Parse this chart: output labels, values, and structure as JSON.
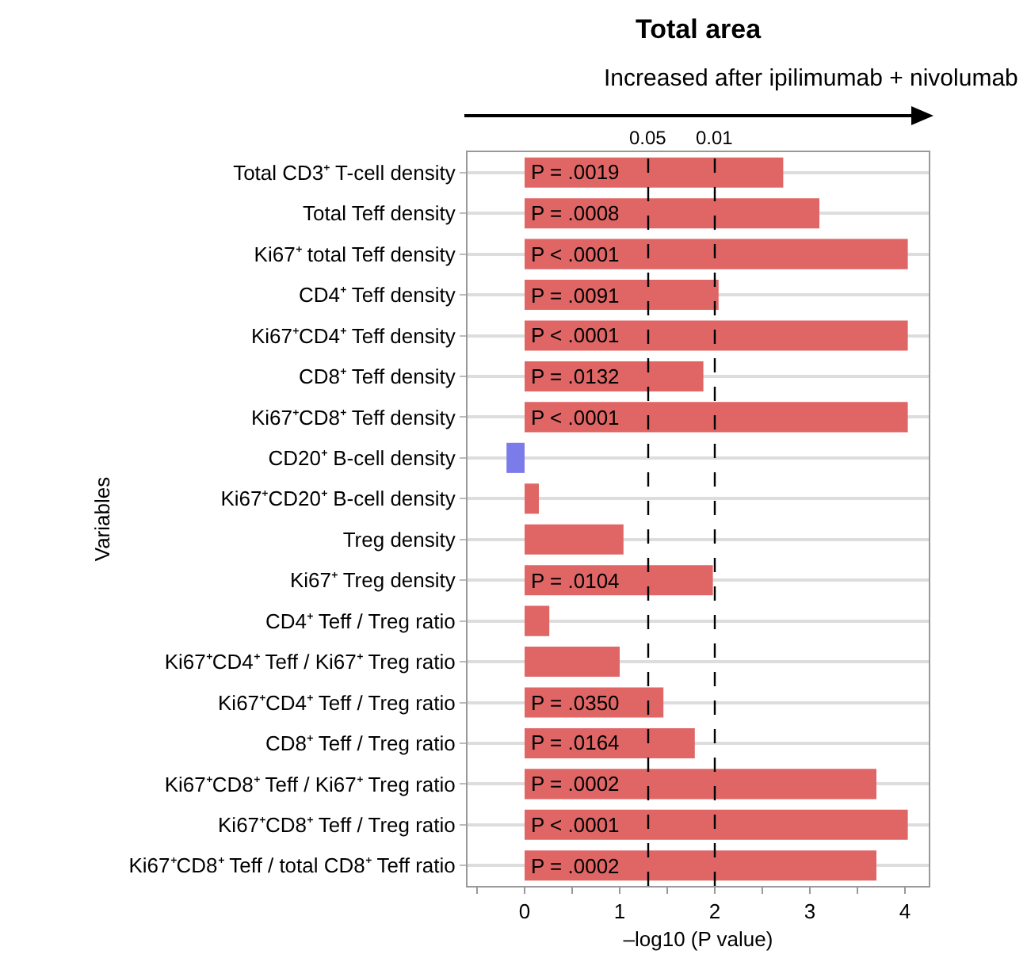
{
  "chart_data": {
    "type": "bar",
    "orientation": "horizontal",
    "title": "Total area",
    "subtitle": "Increased after ipilimumab + nivolumab",
    "xlabel": "–log10 (P value)",
    "ylabel": "Variables",
    "categories": [
      "Total CD3⁺ T-cell density",
      "Total Teff density",
      "Ki67⁺ total Teff density",
      "CD4⁺ Teff density",
      "Ki67⁺CD4⁺ Teff density",
      "CD8⁺ Teff density",
      "Ki67⁺CD8⁺ Teff density",
      "CD20⁺ B-cell density",
      "Ki67⁺CD20⁺ B-cell density",
      "Treg density",
      "Ki67⁺ Treg density",
      "CD4⁺ Teff / Treg ratio",
      "Ki67⁺CD4⁺ Teff / Ki67⁺ Treg ratio",
      "Ki67⁺CD4⁺ Teff / Treg ratio",
      "CD8⁺ Teff / Treg ratio",
      "Ki67⁺CD8⁺ Teff / Ki67⁺ Treg ratio",
      "Ki67⁺CD8⁺ Teff / Treg ratio",
      "Ki67⁺CD8⁺ Teff / total CD8⁺ Teff ratio"
    ],
    "values": [
      2.72,
      3.1,
      4.03,
      2.04,
      4.03,
      1.88,
      4.03,
      -0.19,
      0.15,
      1.04,
      1.98,
      0.26,
      1.0,
      1.46,
      1.79,
      3.7,
      4.03,
      3.7
    ],
    "colors": [
      "#e06666",
      "#e06666",
      "#e06666",
      "#e06666",
      "#e06666",
      "#e06666",
      "#e06666",
      "#7b7bea",
      "#e06666",
      "#e06666",
      "#e06666",
      "#e06666",
      "#e06666",
      "#e06666",
      "#e06666",
      "#e06666",
      "#e06666",
      "#e06666"
    ],
    "annotations": [
      {
        "text": "P = .0019",
        "y": "Total CD3⁺ T-cell density"
      },
      {
        "text": "P = .0008",
        "y": "Total Teff density"
      },
      {
        "text": "P < .0001",
        "y": "Ki67⁺ total Teff density"
      },
      {
        "text": "P = .0091",
        "y": "CD4⁺ Teff density"
      },
      {
        "text": "P < .0001",
        "y": "Ki67⁺CD4⁺ Teff density"
      },
      {
        "text": "P = .0132",
        "y": "CD8⁺ Teff density"
      },
      {
        "text": "P < .0001",
        "y": "Ki67⁺CD8⁺ Teff density"
      },
      {
        "text": "P = .0104",
        "y": "Ki67⁺ Treg density"
      },
      {
        "text": "P = .0350",
        "y": "Ki67⁺CD4⁺ Teff / Treg ratio"
      },
      {
        "text": "P = .0164",
        "y": "CD8⁺ Teff / Treg ratio"
      },
      {
        "text": "P = .0002",
        "y": "Ki67⁺CD8⁺ Teff / Ki67⁺ Treg ratio"
      },
      {
        "text": "P < .0001",
        "y": "Ki67⁺CD8⁺ Teff / Treg ratio"
      },
      {
        "text": "P = .0002",
        "y": "Ki67⁺CD8⁺ Teff / total CD8⁺ Teff ratio"
      },
      "0.05",
      "0.01"
    ],
    "xlim": [
      -0.6,
      4.25
    ],
    "xticks": [
      {
        "value": -0.5,
        "label": null
      },
      0,
      {
        "value": 0.5,
        "label": null
      },
      1,
      {
        "value": 1.5,
        "label": null
      },
      2,
      {
        "value": 2.5,
        "label": null
      },
      3,
      {
        "value": 3.5,
        "label": null
      },
      4
    ],
    "ref_lines": [
      {
        "axis": "x",
        "value": 1.3,
        "line_style": "dashed",
        "color": "#000000"
      },
      {
        "axis": "x",
        "value": 2,
        "line_style": "dashed",
        "color": "#000000"
      }
    ],
    "grid": "y"
  }
}
